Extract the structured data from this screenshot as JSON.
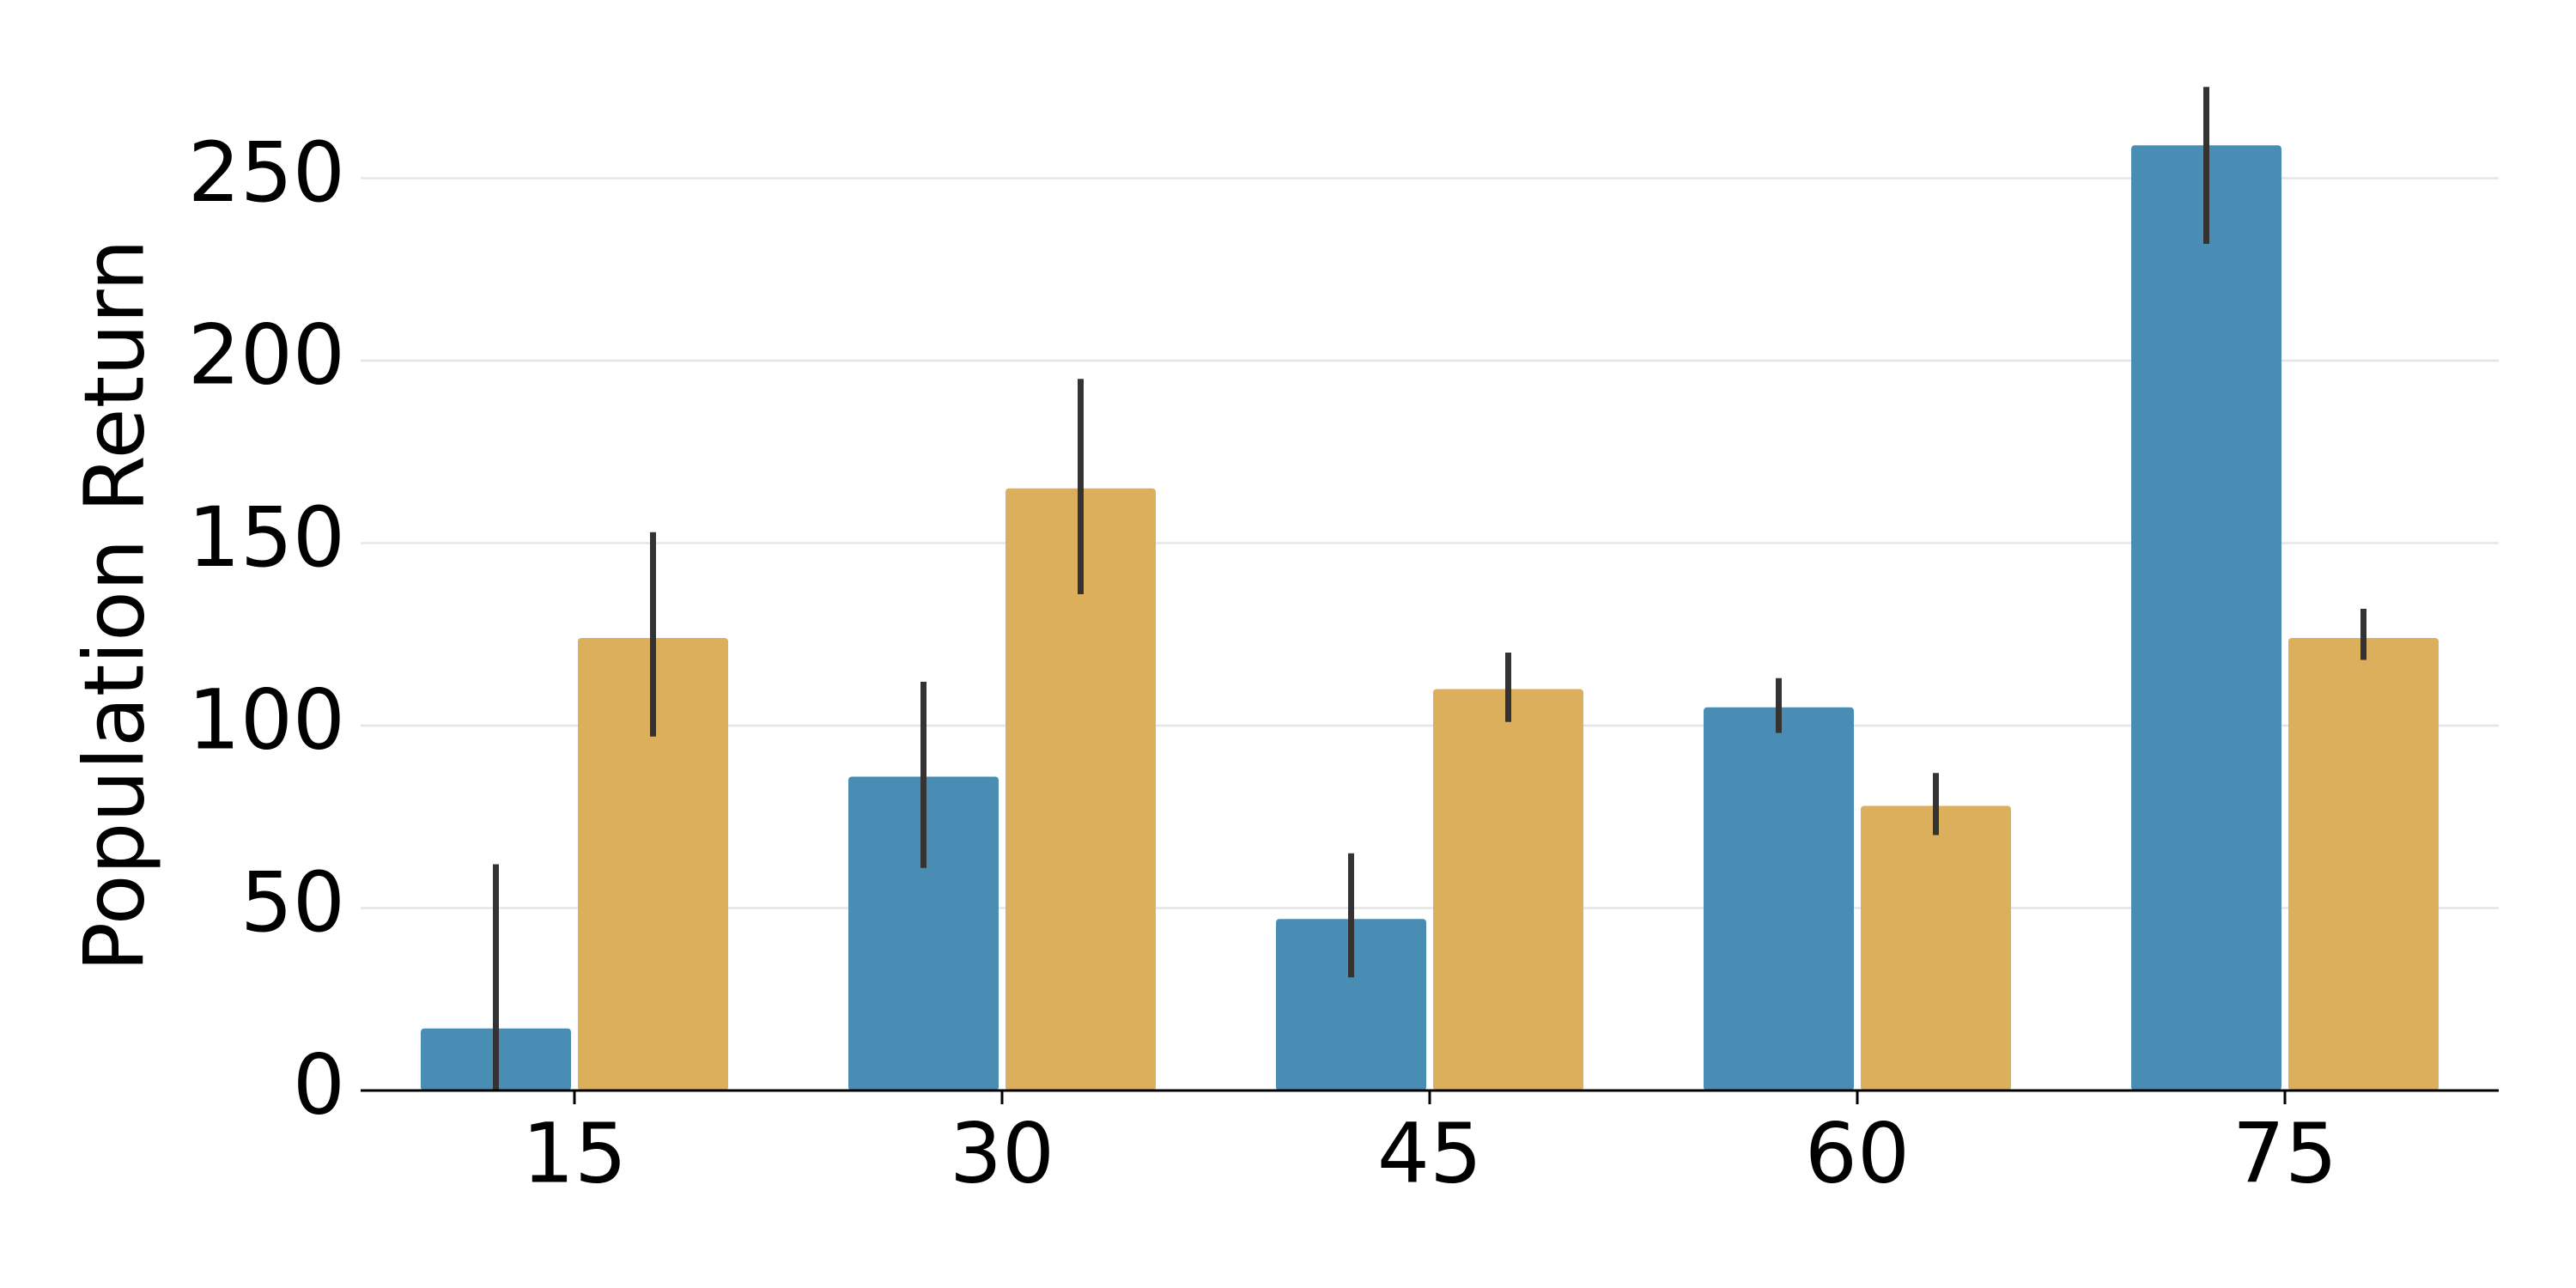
{
  "chart_data": {
    "type": "bar",
    "categories": [
      "15",
      "30",
      "45",
      "60",
      "75"
    ],
    "series": [
      {
        "color": "#4a8db4",
        "values": [
          17,
          86,
          47,
          105,
          259
        ],
        "error_low": [
          0,
          61,
          31,
          98,
          232
        ],
        "error_high": [
          62,
          112,
          65,
          113,
          275
        ]
      },
      {
        "color": "#dcaf5c",
        "values": [
          124,
          165,
          110,
          78,
          124
        ],
        "error_low": [
          97,
          136,
          101,
          70,
          118
        ],
        "error_high": [
          153,
          195,
          120,
          87,
          132
        ]
      }
    ],
    "xlabel": "",
    "ylabel": "Population Return",
    "ylim": [
      0,
      280
    ],
    "yticks": [
      0,
      50,
      100,
      150,
      200,
      250
    ],
    "grid": true
  }
}
